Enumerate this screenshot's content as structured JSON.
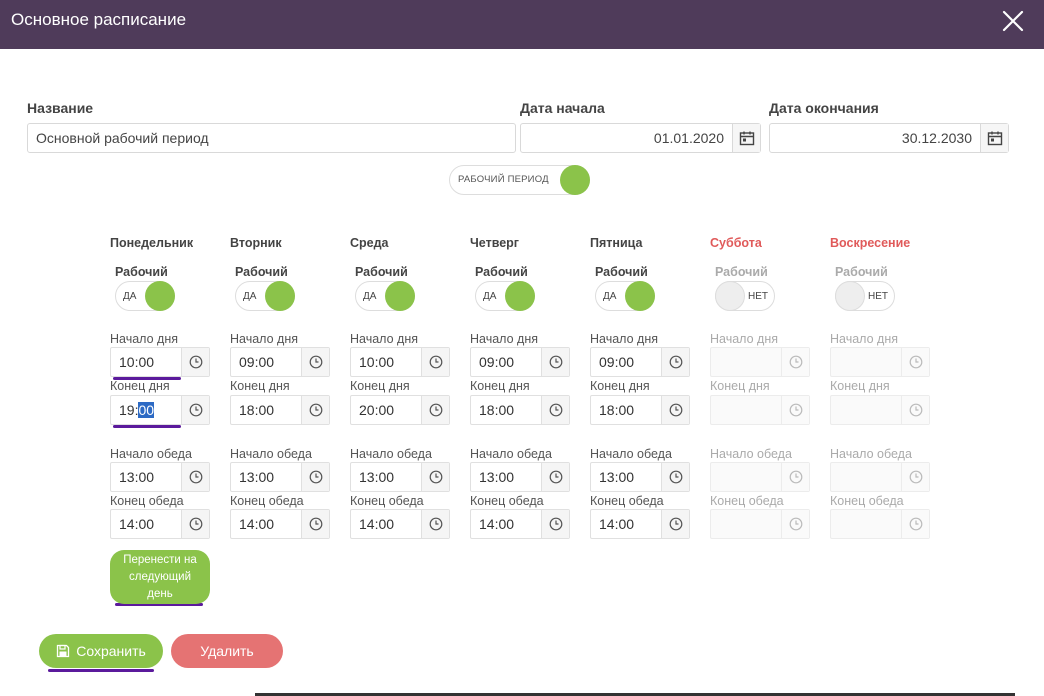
{
  "header": {
    "title": "Основное расписание"
  },
  "form": {
    "name_label": "Название",
    "name_value": "Основной рабочий период",
    "start_label": "Дата начала",
    "start_value": "01.01.2020",
    "end_label": "Дата окончания",
    "end_value": "30.12.2030",
    "period_toggle_label": "РАБОЧИЙ ПЕРИОД"
  },
  "labels": {
    "work": "Рабочий",
    "day_start": "Начало дня",
    "day_end": "Конец дня",
    "lunch_start": "Начало обеда",
    "lunch_end": "Конец обеда",
    "yes": "ДА",
    "no": "НЕТ"
  },
  "days": [
    {
      "name": "Понедельник",
      "working": true,
      "day_start": "10:00",
      "day_end_a": "19:",
      "day_end_b": "00",
      "lunch_start": "13:00",
      "lunch_end": "14:00"
    },
    {
      "name": "Вторник",
      "working": true,
      "day_start": "09:00",
      "day_end": "18:00",
      "lunch_start": "13:00",
      "lunch_end": "14:00"
    },
    {
      "name": "Среда",
      "working": true,
      "day_start": "10:00",
      "day_end": "20:00",
      "lunch_start": "13:00",
      "lunch_end": "14:00"
    },
    {
      "name": "Четверг",
      "working": true,
      "day_start": "09:00",
      "day_end": "18:00",
      "lunch_start": "13:00",
      "lunch_end": "14:00"
    },
    {
      "name": "Пятница",
      "working": true,
      "day_start": "09:00",
      "day_end": "18:00",
      "lunch_start": "13:00",
      "lunch_end": "14:00"
    },
    {
      "name": "Суббота",
      "working": false
    },
    {
      "name": "Воскресение",
      "working": false
    }
  ],
  "buttons": {
    "transfer_line1": "Перенести на",
    "transfer_line2": "следующий",
    "transfer_line3": "день",
    "save": "Сохранить",
    "delete": "Удалить"
  },
  "colors": {
    "header": "#4f3b5a",
    "green": "#8bc34a",
    "red": "#e57373",
    "weekend": "#e05a5a",
    "accent_underline": "#5b1a9c"
  }
}
